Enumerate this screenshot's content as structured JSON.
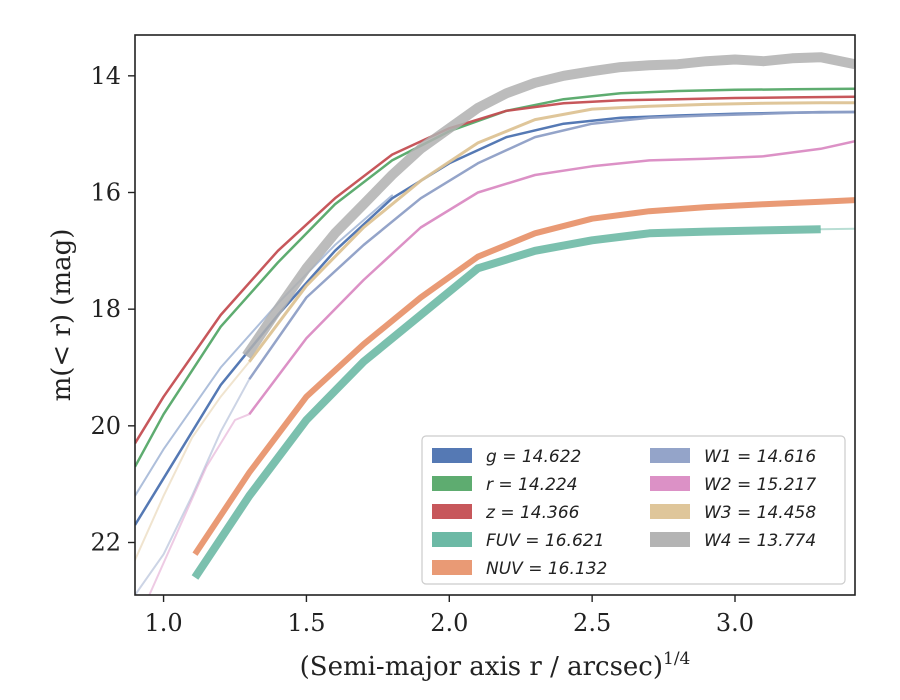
{
  "chart_data": {
    "type": "line",
    "title": "",
    "xlabel": "(Semi-major axis r / arcsec)",
    "xlabel_exponent": "1/4",
    "ylabel": "m(< r) (mag)",
    "xlim": [
      0.9,
      3.42
    ],
    "ylim": [
      22.9,
      13.3
    ],
    "y_inverted": true,
    "xticks": [
      1.0,
      1.5,
      2.0,
      2.5,
      3.0
    ],
    "xtick_labels": [
      "1.0",
      "1.5",
      "2.0",
      "2.5",
      "3.0"
    ],
    "yticks": [
      14,
      16,
      18,
      20,
      22
    ],
    "ytick_labels": [
      "14",
      "16",
      "18",
      "20",
      "22"
    ],
    "grid": false,
    "legend_position": "bottom-right",
    "series": [
      {
        "name": "g = 14.622",
        "color": "#4C72B0",
        "width": 2.5,
        "x": [
          0.9,
          1.0,
          1.2,
          1.4,
          1.6,
          1.8,
          2.0,
          2.2,
          2.4,
          2.6,
          2.8,
          3.0,
          3.2,
          3.42
        ],
        "y": [
          21.7,
          20.9,
          19.3,
          18.1,
          17.0,
          16.1,
          15.5,
          15.05,
          14.82,
          14.72,
          14.68,
          14.65,
          14.63,
          14.62
        ],
        "faint_x": [
          0.9,
          1.0,
          1.2,
          1.4,
          1.6,
          1.8
        ],
        "faint_y": [
          21.2,
          20.4,
          19.0,
          17.9,
          16.9,
          16.05
        ]
      },
      {
        "name": "r = 14.224",
        "color": "#55A868",
        "width": 2.5,
        "x": [
          0.9,
          1.0,
          1.2,
          1.4,
          1.6,
          1.8,
          2.0,
          2.2,
          2.4,
          2.6,
          2.8,
          3.0,
          3.2,
          3.42
        ],
        "y": [
          20.7,
          19.8,
          18.3,
          17.2,
          16.2,
          15.45,
          14.95,
          14.6,
          14.4,
          14.3,
          14.26,
          14.24,
          14.23,
          14.22
        ]
      },
      {
        "name": "z = 14.366",
        "color": "#C44E52",
        "width": 2.5,
        "x": [
          0.9,
          1.0,
          1.2,
          1.4,
          1.6,
          1.8,
          2.0,
          2.2,
          2.4,
          2.6,
          2.8,
          3.0,
          3.2,
          3.42
        ],
        "y": [
          20.3,
          19.5,
          18.1,
          17.0,
          16.1,
          15.35,
          14.9,
          14.6,
          14.47,
          14.42,
          14.4,
          14.38,
          14.37,
          14.36
        ]
      },
      {
        "name": "FUV = 16.621",
        "color": "#64B5A0",
        "width": 8,
        "band": true,
        "x": [
          1.11,
          1.3,
          1.5,
          1.7,
          1.9,
          2.1,
          2.3,
          2.5,
          2.7,
          2.9,
          3.1,
          3.3
        ],
        "y": [
          22.6,
          21.2,
          19.9,
          18.9,
          18.1,
          17.3,
          17.0,
          16.82,
          16.7,
          16.67,
          16.65,
          16.63
        ],
        "faint_x": [
          3.3,
          3.42
        ],
        "faint_y": [
          16.63,
          16.62
        ]
      },
      {
        "name": "NUV = 16.132",
        "color": "#E8956E",
        "width": 6,
        "x": [
          1.11,
          1.3,
          1.5,
          1.7,
          1.9,
          2.1,
          2.3,
          2.5,
          2.7,
          2.9,
          3.1,
          3.3,
          3.42
        ],
        "y": [
          22.2,
          20.8,
          19.5,
          18.6,
          17.8,
          17.1,
          16.7,
          16.45,
          16.32,
          16.25,
          16.2,
          16.16,
          16.13
        ]
      },
      {
        "name": "W1 = 14.616",
        "color": "#8E9FC6",
        "width": 2.5,
        "x": [
          1.3,
          1.5,
          1.7,
          1.9,
          2.1,
          2.3,
          2.5,
          2.7,
          2.9,
          3.1,
          3.3,
          3.42
        ],
        "y": [
          19.2,
          17.8,
          16.9,
          16.1,
          15.5,
          15.05,
          14.82,
          14.72,
          14.68,
          14.65,
          14.62,
          14.62
        ],
        "faint_x": [
          0.9,
          1.0,
          1.1,
          1.2,
          1.3
        ],
        "faint_y": [
          22.9,
          22.2,
          21.2,
          20.1,
          19.2
        ]
      },
      {
        "name": "W2 = 15.217",
        "color": "#DA8BC3",
        "width": 2.5,
        "x": [
          1.3,
          1.5,
          1.7,
          1.9,
          2.1,
          2.3,
          2.5,
          2.7,
          2.9,
          3.1,
          3.3,
          3.42
        ],
        "y": [
          19.8,
          18.5,
          17.5,
          16.6,
          16.0,
          15.7,
          15.55,
          15.45,
          15.42,
          15.38,
          15.25,
          15.12
        ],
        "faint_x": [
          0.95,
          1.05,
          1.15,
          1.25,
          1.3
        ],
        "faint_y": [
          22.9,
          21.8,
          20.7,
          19.9,
          19.8
        ]
      },
      {
        "name": "W3 = 14.458",
        "color": "#DDC395",
        "width": 3,
        "x": [
          1.3,
          1.5,
          1.7,
          1.9,
          2.1,
          2.3,
          2.5,
          2.7,
          2.9,
          3.1,
          3.3,
          3.42
        ],
        "y": [
          18.9,
          17.6,
          16.6,
          15.8,
          15.15,
          14.75,
          14.57,
          14.52,
          14.49,
          14.47,
          14.46,
          14.46
        ],
        "faint_x": [
          0.9,
          1.0,
          1.1,
          1.2,
          1.3
        ],
        "faint_y": [
          22.3,
          21.2,
          20.2,
          19.5,
          18.9
        ]
      },
      {
        "name": "W4 = 13.774",
        "color": "#B0B0B0",
        "width": 10,
        "band": true,
        "x": [
          1.29,
          1.4,
          1.5,
          1.6,
          1.7,
          1.8,
          1.9,
          2.0,
          2.1,
          2.2,
          2.3,
          2.4,
          2.5,
          2.6,
          2.7,
          2.8,
          2.9,
          3.0,
          3.1,
          3.2,
          3.3,
          3.42
        ],
        "y": [
          18.8,
          18.0,
          17.3,
          16.7,
          16.2,
          15.7,
          15.25,
          14.9,
          14.55,
          14.3,
          14.12,
          14.0,
          13.92,
          13.85,
          13.82,
          13.8,
          13.75,
          13.72,
          13.75,
          13.7,
          13.68,
          13.8
        ]
      }
    ]
  }
}
